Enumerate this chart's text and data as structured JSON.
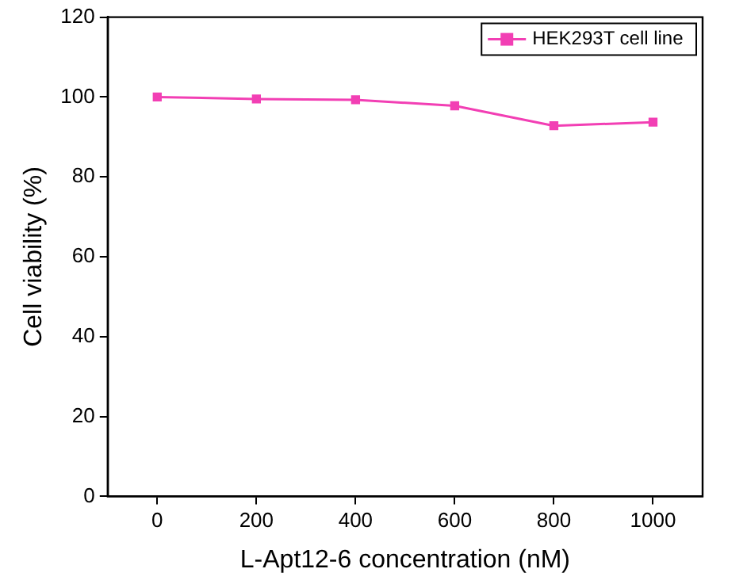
{
  "chart_data": {
    "type": "line",
    "xlabel": "L-Apt12-6 concentration (nM)",
    "ylabel": "Cell viability (%)",
    "x": [
      0,
      200,
      400,
      600,
      800,
      1000
    ],
    "series": [
      {
        "name": "HEK293T cell line",
        "color": "#f23fb4",
        "values": [
          100,
          99.5,
          99.3,
          97.8,
          92.8,
          93.7
        ]
      }
    ],
    "xlim": [
      -100,
      1100
    ],
    "xticks": [
      0,
      200,
      400,
      600,
      800,
      1000
    ],
    "ylim": [
      0,
      120
    ],
    "yticks": [
      0,
      20,
      40,
      60,
      80,
      100,
      120
    ],
    "legend": "top right",
    "marker": "square",
    "line_style": "solid"
  }
}
